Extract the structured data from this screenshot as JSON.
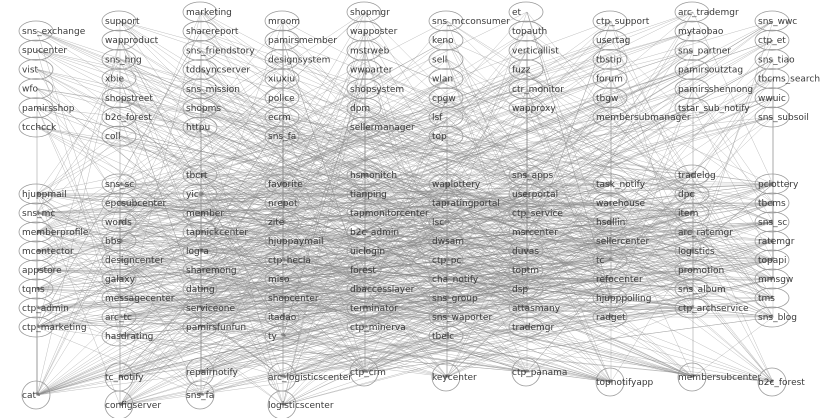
{
  "graph": {
    "edge_color": "#8a8a8a",
    "node_stroke": "#9a9a9a",
    "label_color": "#3a3a3a",
    "top_columns": [
      [
        "sns_exchange",
        "spucenter",
        "vist",
        "wfo",
        "pamirsshop",
        "tcchcck"
      ],
      [
        "support",
        "wapproduct",
        "sns_hng",
        "xbie",
        "shopstreet",
        "b2c_forest",
        "coll"
      ],
      [
        "marketing",
        "sharereport",
        "sns_friendstory",
        "tddsyncserver",
        "sns_mission",
        "shopms",
        "httpu"
      ],
      [
        "mroom",
        "pamirsmember",
        "designsystem",
        "xiuxiu",
        "police",
        "ecrm",
        "sns_fa"
      ],
      [
        "shopmgr",
        "wapposter",
        "mstrweb",
        "wwparter",
        "shopsystem",
        "dpm",
        "sellermanager"
      ],
      [
        "sns_mcconsumer",
        "keno",
        "sell",
        "wlan",
        "cpgw",
        "lsf",
        "top"
      ],
      [
        "et",
        "topauth",
        "verticallist",
        "fuzz",
        "ctr_monitor",
        "wapproxy"
      ],
      [
        "ctp_support",
        "usertag",
        "tbstip",
        "forum",
        "tbgw",
        "membersubmanager"
      ],
      [
        "arc_trademgr",
        "mytaobao",
        "sns_partner",
        "pamirsoutztag",
        "pamirsshennong",
        "tstar_sub_notify"
      ],
      [
        "sns_wwc",
        "ctp_et",
        "sns_tiao",
        "tbcms_search",
        "wwuic",
        "sns_subsoil"
      ]
    ],
    "middle_columns": [
      [
        "hjuppmail",
        "sns_mc",
        "memberprofile",
        "mcontector",
        "appstore",
        "tqms",
        "ctp_admin",
        "ctp_marketing"
      ],
      [
        "sns_sc",
        "epcsubcenter",
        "words",
        "bbs",
        "designcenter",
        "galaxy",
        "messagecenter",
        "arc_tc",
        "hasdrating"
      ],
      [
        "tbcrt",
        "yic",
        "member",
        "tapnickcenter",
        "logra",
        "sharemong",
        "dating",
        "serviceone",
        "pamirsfunfun"
      ],
      [
        "favorite",
        "nrepot",
        "zite",
        "hjuppaymail",
        "ctp_hecla",
        "miso",
        "shopcenter",
        "itadao",
        "ty"
      ],
      [
        "hsmonitch",
        "tianping",
        "tapmonitorcenter",
        "b2c_admin",
        "uiclogin",
        "forest",
        "dbaccesslayer",
        "terminator",
        "ctp_minerva"
      ],
      [
        "waplottery",
        "tapratingportal",
        "lsc",
        "dwsam",
        "ctp_pc",
        "cha_notify",
        "sns_group",
        "sns_waporter",
        "tbelc"
      ],
      [
        "sns_apps",
        "userportal",
        "ctp_service",
        "msrcenter",
        "duvas",
        "toptm",
        "dsp",
        "attasmany",
        "trademgr"
      ],
      [
        "task_notify",
        "warehouse",
        "hsdllin",
        "sellercenter",
        "tc",
        "refocenter",
        "hjupppolling",
        "radget"
      ],
      [
        "tradelog",
        "dpc",
        "item",
        "arc_ratemgr",
        "logistics",
        "promotion",
        "sns_album",
        "ctp_archservice"
      ],
      [
        "pclottery",
        "tbcms",
        "sns_sc",
        "ratemgr",
        "topapi",
        "mmsgw",
        "tms",
        "sns_blog"
      ]
    ],
    "bottom_nodes": [
      "cat",
      "tc_notify",
      "configserver",
      "repairnotify",
      "sns_fa",
      "arc_logisticscenter",
      "logisticscenter",
      "ctp_crm",
      "keycenter",
      "ctp_panama",
      "topnotifyapp",
      "membersubcenter",
      "b2c_forest"
    ]
  }
}
